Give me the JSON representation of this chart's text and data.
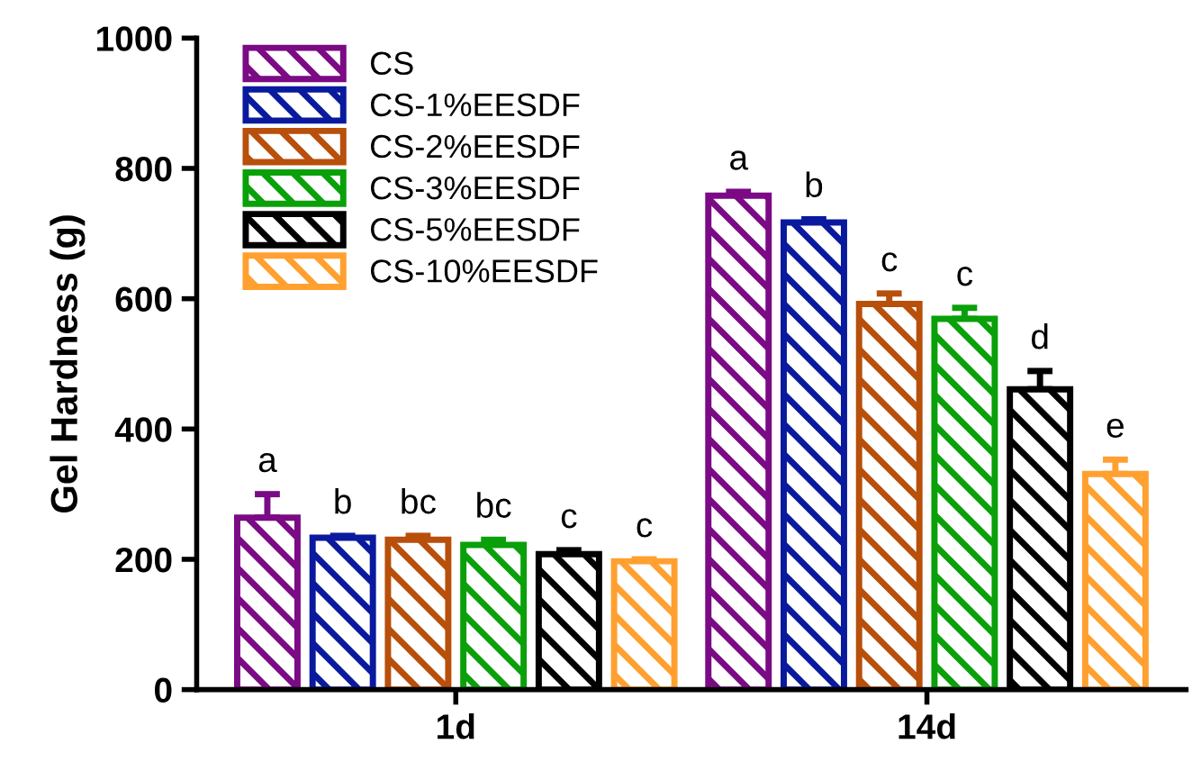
{
  "chart_data": {
    "type": "bar",
    "ylabel": "Gel Hardness (g)",
    "categories": [
      "1d",
      "14d"
    ],
    "series": [
      {
        "name": "CS",
        "color": "#7b0a85",
        "values": [
          264,
          758
        ],
        "errors": [
          36,
          6
        ]
      },
      {
        "name": "CS-1%EESDF",
        "color": "#0a1a9e",
        "values": [
          233,
          717
        ],
        "errors": [
          3,
          5
        ]
      },
      {
        "name": "CS-2%EESDF",
        "color": "#b84f0a",
        "values": [
          230,
          592
        ],
        "errors": [
          6,
          16
        ]
      },
      {
        "name": "CS-3%EESDF",
        "color": "#0aa00a",
        "values": [
          222,
          569
        ],
        "errors": [
          8,
          17
        ]
      },
      {
        "name": "CS-5%EESDF",
        "color": "#000000",
        "values": [
          208,
          461
        ],
        "errors": [
          6,
          28
        ]
      },
      {
        "name": "CS-10%EESDF",
        "color": "#ffa030",
        "values": [
          197,
          331
        ],
        "errors": [
          3,
          22
        ]
      }
    ],
    "annotations": [
      "a",
      "b",
      "bc",
      "bc",
      "c",
      "c",
      "a",
      "b",
      "c",
      "c",
      "d",
      "e"
    ],
    "ylim": [
      0,
      1000
    ],
    "yticks": [
      0,
      200,
      400,
      600,
      800,
      1000
    ],
    "grid": false,
    "legend": "top left"
  }
}
